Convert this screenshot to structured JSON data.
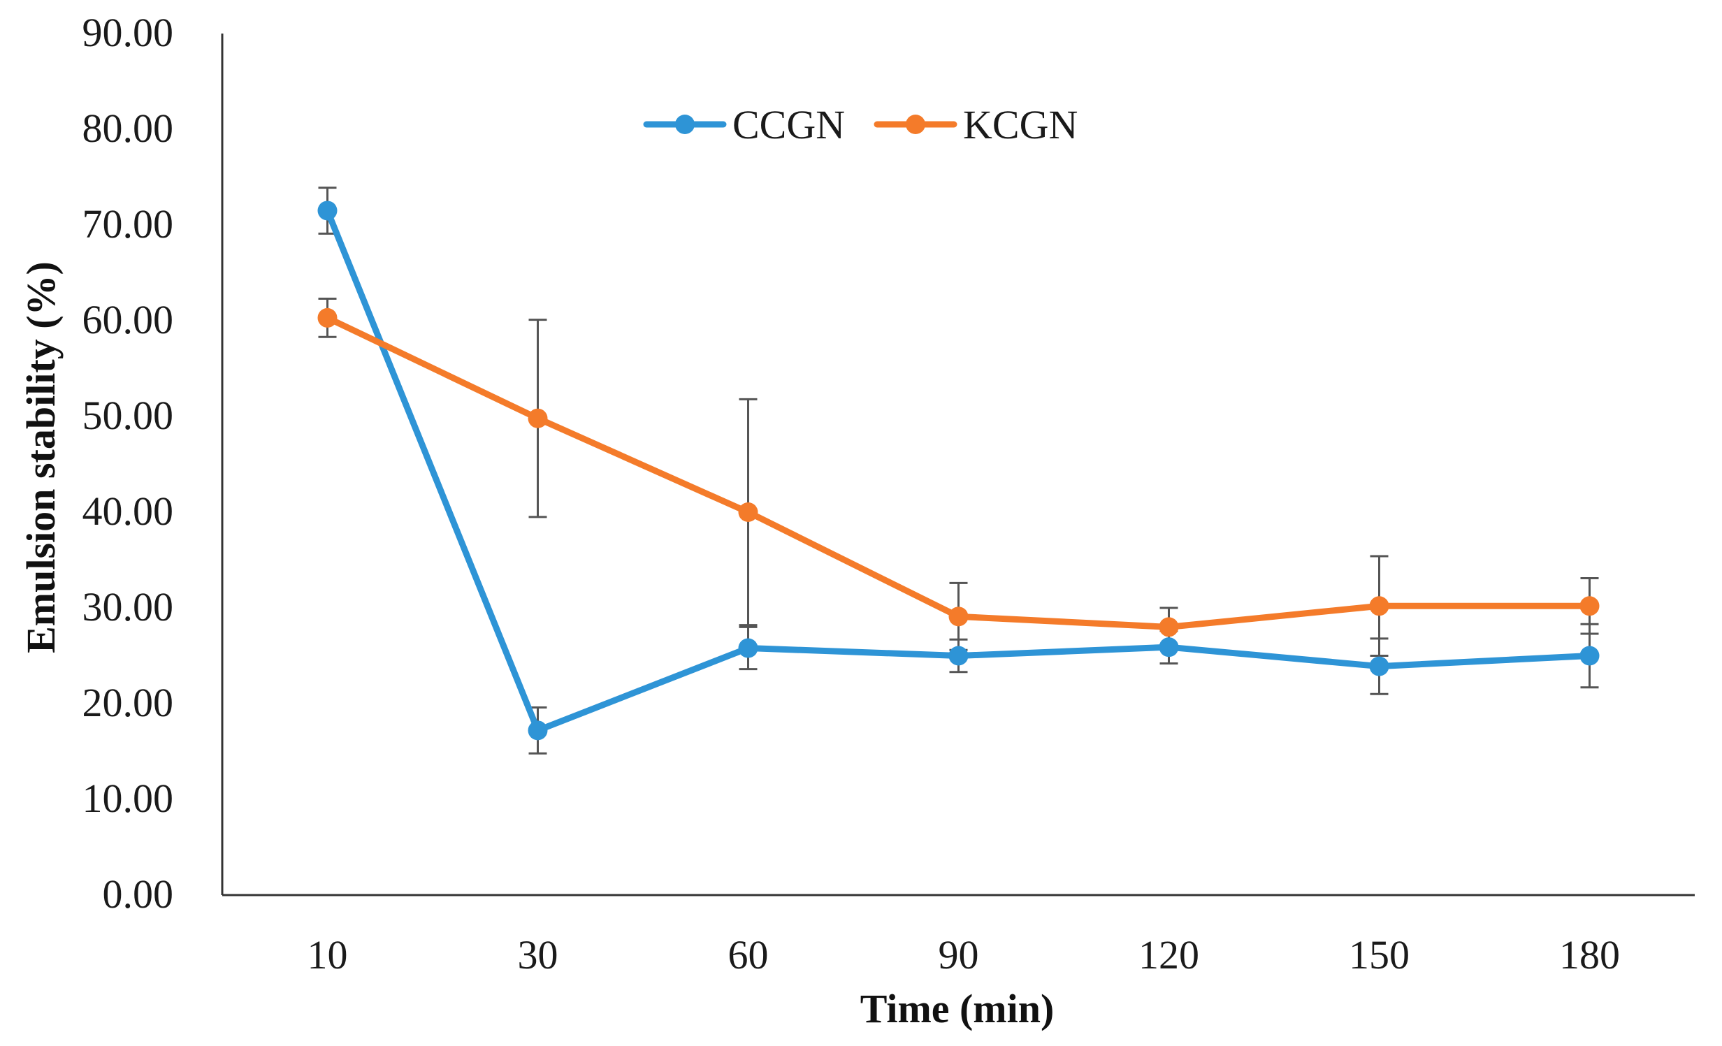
{
  "chart_data": {
    "type": "line",
    "title": "",
    "xlabel": "Time (min)",
    "ylabel": "Emulsion stability (%)",
    "categories": [
      "10",
      "30",
      "60",
      "90",
      "120",
      "150",
      "180"
    ],
    "ylim": [
      0,
      90
    ],
    "yticks": [
      "0.00",
      "10.00",
      "20.00",
      "30.00",
      "40.00",
      "50.00",
      "60.00",
      "70.00",
      "80.00",
      "90.00"
    ],
    "ytick_values": [
      0,
      10,
      20,
      30,
      40,
      50,
      60,
      70,
      80,
      90
    ],
    "grid": false,
    "legend_position": "top-center",
    "series": [
      {
        "name": "CCGN",
        "color": "#2E94D6",
        "values": [
          71.5,
          17.2,
          25.8,
          25.0,
          25.9,
          23.9,
          25.0
        ],
        "errors": [
          2.4,
          2.4,
          2.2,
          1.7,
          1.7,
          2.9,
          3.3
        ]
      },
      {
        "name": "KCGN",
        "color": "#F47B2A",
        "values": [
          60.3,
          49.8,
          40.0,
          29.1,
          28.0,
          30.2,
          30.2
        ],
        "errors": [
          2.0,
          10.3,
          11.8,
          3.5,
          2.0,
          5.2,
          2.9
        ]
      }
    ],
    "axis_color": "#333333",
    "errorbar_color": "#555555"
  }
}
